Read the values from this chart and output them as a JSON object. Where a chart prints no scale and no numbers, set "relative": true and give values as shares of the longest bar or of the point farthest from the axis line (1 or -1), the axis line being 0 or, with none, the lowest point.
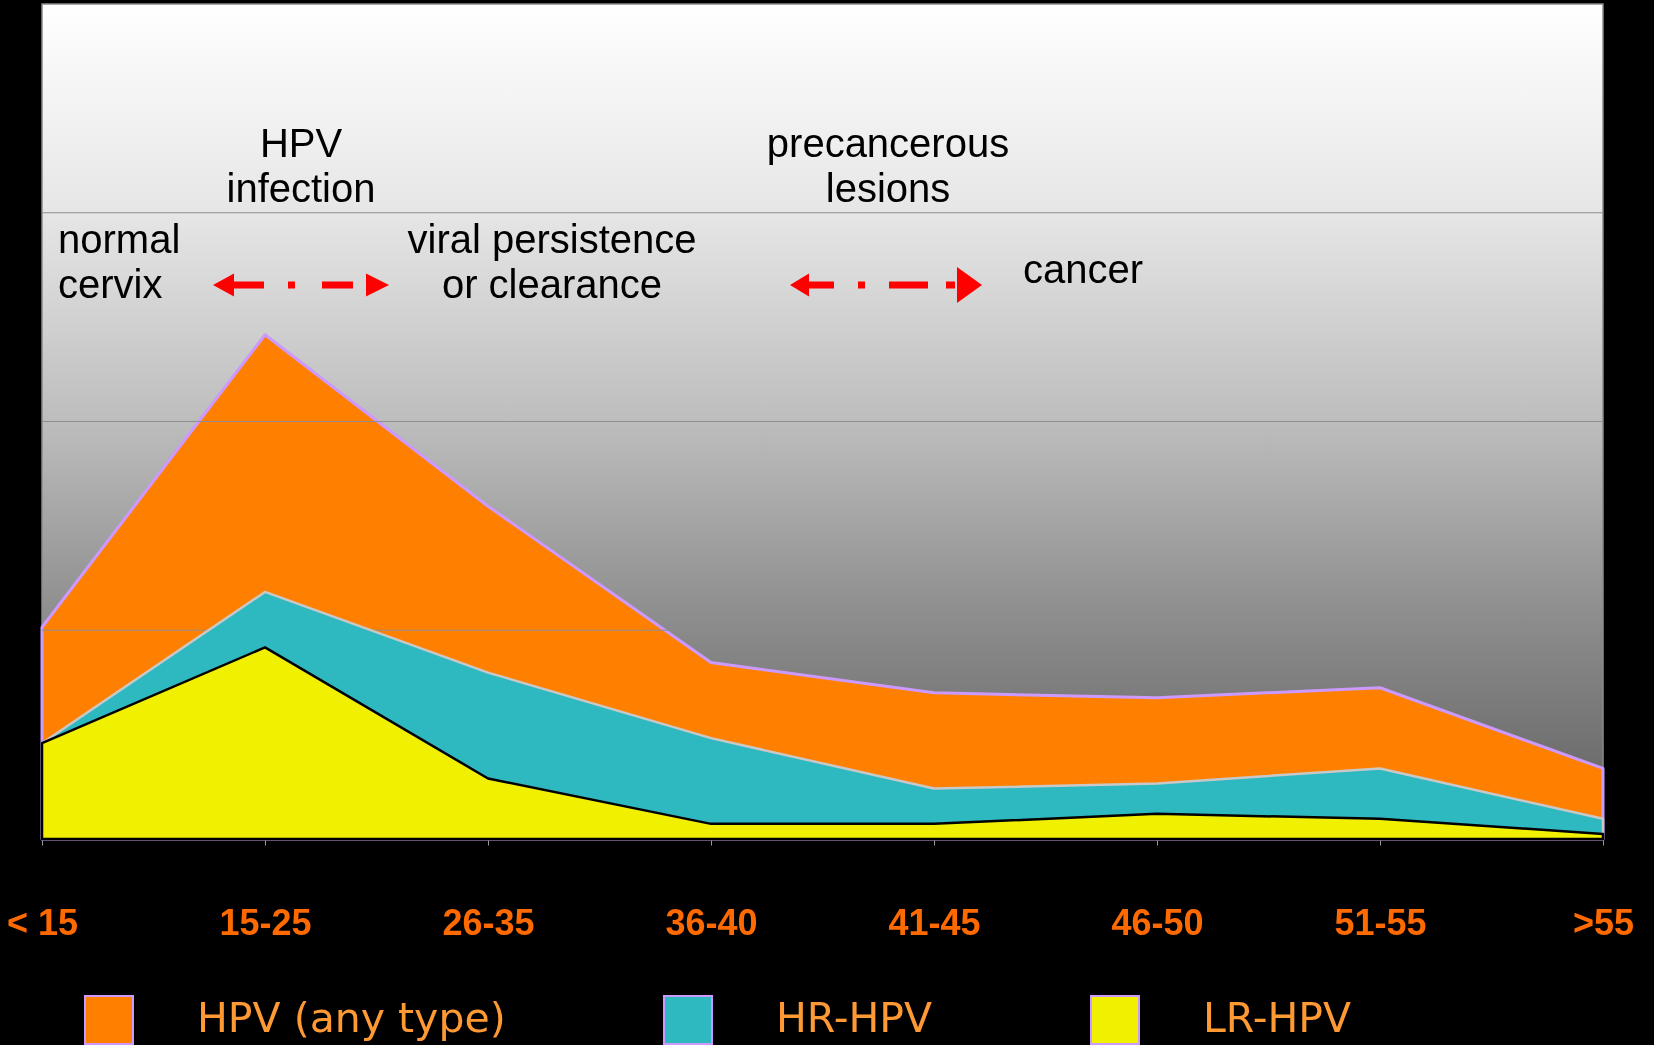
{
  "chart_data": {
    "type": "area",
    "relative": true,
    "categories": [
      "< 15",
      "15-25",
      "26-35",
      "36-40",
      "41-45",
      "46-50",
      "51-55",
      ">55"
    ],
    "series": [
      {
        "name": "HPV (any type)",
        "color": "#ff8000",
        "values": [
          0.42,
          1,
          0.66,
          0.35,
          0.29,
          0.28,
          0.3,
          0.14
        ]
      },
      {
        "name": "HR-HPV",
        "color": "#2eb8c0",
        "values": [
          0.19,
          0.49,
          0.33,
          0.2,
          0.1,
          0.11,
          0.14,
          0.04
        ]
      },
      {
        "name": "LR-HPV",
        "color": "#f0f000",
        "values": [
          0.19,
          0.38,
          0.12,
          0.03,
          0.03,
          0.05,
          0.04,
          0.01
        ]
      }
    ],
    "ref_lines": [
      {
        "axis": "y",
        "value": 0.414,
        "color": "#8f8f8f"
      },
      {
        "axis": "y",
        "value": 0.828,
        "color": "#8f8f8f"
      },
      {
        "axis": "y",
        "value": 1.242,
        "color": "#8f8f8f"
      }
    ],
    "legend": "bottom",
    "annotations": [
      "HPV\ninfection",
      "precancerous\nlesions",
      "normal\ncervix",
      "viral persistence\nor clearance",
      "cancer"
    ]
  }
}
